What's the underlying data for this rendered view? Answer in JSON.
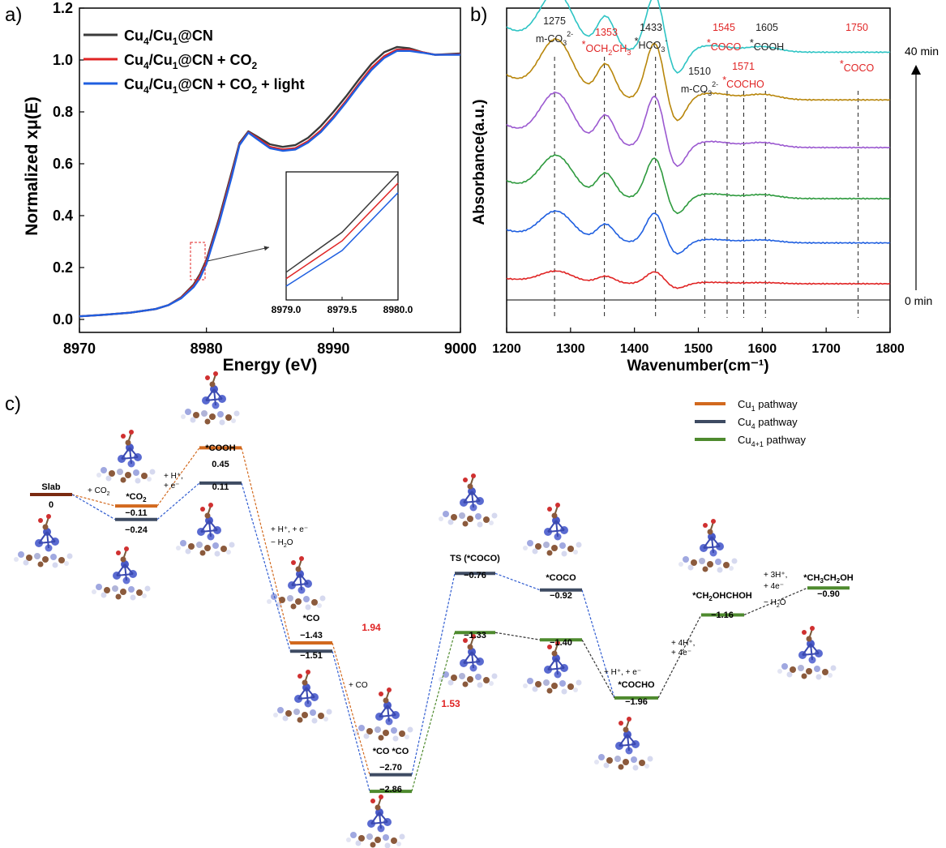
{
  "panel_labels": {
    "a": "a)",
    "b": "b)",
    "c": "c)"
  },
  "colors": {
    "dark": "#3a3a3a",
    "red": "#e02424",
    "blue": "#1f5fe0",
    "orange": "#d2691e",
    "navy": "#3e4b62",
    "green": "#4e8a2e",
    "slab": "#7a2a10"
  },
  "chart_data": [
    {
      "type": "line",
      "panel": "a",
      "xlabel": "Energy (eV)",
      "ylabel": "Normalized xμ(E)",
      "xlim": [
        8970,
        9000
      ],
      "ylim": [
        -0.05,
        1.2
      ],
      "xticks": [
        "8970",
        "8980",
        "8990",
        "9000"
      ],
      "yticks": [
        "0.0",
        "0.2",
        "0.4",
        "0.6",
        "0.8",
        "1.0",
        "1.2"
      ],
      "legend_position": "top-left",
      "series": [
        {
          "name": "Cu4/Cu1@CN",
          "legend": {
            "base": "Cu",
            "sub1": "4",
            "mid": "/Cu",
            "sub2": "1",
            "tail": "@CN",
            "sub3": "",
            "tail2": ""
          },
          "color": "#3a3a3a",
          "x": [
            8970,
            8972,
            8974,
            8976,
            8977,
            8978,
            8979,
            8979.5,
            8980,
            8981,
            8982,
            8982.6,
            8983.3,
            8984,
            8985,
            8986,
            8987,
            8988,
            8989,
            8990,
            8991,
            8992,
            8993,
            8994,
            8995,
            8996,
            8997,
            8998,
            9000
          ],
          "y": [
            0.012,
            0.018,
            0.026,
            0.04,
            0.055,
            0.085,
            0.135,
            0.175,
            0.23,
            0.39,
            0.57,
            0.68,
            0.725,
            0.705,
            0.675,
            0.665,
            0.672,
            0.7,
            0.745,
            0.8,
            0.86,
            0.925,
            0.985,
            1.03,
            1.05,
            1.045,
            1.03,
            1.02,
            1.025
          ]
        },
        {
          "name": "Cu4/Cu1@CN + CO2",
          "legend": {
            "base": "Cu",
            "sub1": "4",
            "mid": "/Cu",
            "sub2": "1",
            "tail": "@CN + CO",
            "sub3": "2",
            "tail2": ""
          },
          "color": "#e02424",
          "x": [
            8970,
            8972,
            8974,
            8976,
            8977,
            8978,
            8979,
            8979.5,
            8980,
            8981,
            8982,
            8982.6,
            8983.3,
            8984,
            8985,
            8986,
            8987,
            8988,
            8989,
            8990,
            8991,
            8992,
            8993,
            8994,
            8995,
            8996,
            8997,
            8998,
            9000
          ],
          "y": [
            0.012,
            0.018,
            0.026,
            0.04,
            0.055,
            0.083,
            0.13,
            0.168,
            0.222,
            0.38,
            0.56,
            0.675,
            0.722,
            0.7,
            0.665,
            0.655,
            0.66,
            0.687,
            0.728,
            0.782,
            0.843,
            0.908,
            0.97,
            1.015,
            1.04,
            1.04,
            1.03,
            1.02,
            1.022
          ]
        },
        {
          "name": "Cu4/Cu1@CN + CO2 + light",
          "legend": {
            "base": "Cu",
            "sub1": "4",
            "mid": "/Cu",
            "sub2": "1",
            "tail": "@CN + CO",
            "sub3": "2",
            "tail2": " + light"
          },
          "color": "#1f5fe0",
          "x": [
            8970,
            8972,
            8974,
            8976,
            8977,
            8978,
            8979,
            8979.5,
            8980,
            8981,
            8982,
            8982.6,
            8983.3,
            8984,
            8985,
            8986,
            8987,
            8988,
            8989,
            8990,
            8991,
            8992,
            8993,
            8994,
            8995,
            8996,
            8997,
            8998,
            9000
          ],
          "y": [
            0.012,
            0.018,
            0.026,
            0.04,
            0.055,
            0.081,
            0.125,
            0.16,
            0.215,
            0.372,
            0.552,
            0.672,
            0.72,
            0.695,
            0.66,
            0.65,
            0.655,
            0.682,
            0.722,
            0.776,
            0.837,
            0.902,
            0.962,
            1.008,
            1.035,
            1.035,
            1.028,
            1.02,
            1.02
          ]
        }
      ],
      "inset": {
        "xlim": [
          8979.0,
          8980.0
        ],
        "xticks": [
          "8979.0",
          "8979.5",
          "8980.0"
        ],
        "series_y": [
          [
            0.138,
            0.176,
            0.232
          ],
          [
            0.133,
            0.169,
            0.224
          ],
          [
            0.127,
            0.161,
            0.216
          ]
        ],
        "x": [
          8979.0,
          8979.5,
          8980.0
        ]
      }
    },
    {
      "type": "line",
      "panel": "b",
      "xlabel": "Wavenumber(cm⁻¹)",
      "ylabel": "Absorbance(a.u.)",
      "xlim": [
        1200,
        1800
      ],
      "xticks": [
        "1200",
        "1300",
        "1400",
        "1500",
        "1600",
        "1700",
        "1800"
      ],
      "time_labels": {
        "top": "40 min",
        "bottom": "0 min"
      },
      "peak_positions": [
        1275,
        1353,
        1433,
        1510,
        1545,
        1571,
        1605,
        1750
      ],
      "peak_labels": [
        {
          "wn": 1275,
          "num": "1275",
          "species": "m-CO",
          "sub": "3",
          "sup": "2-",
          "star": "",
          "color": "#222222"
        },
        {
          "wn": 1353,
          "num": "1353",
          "species": "OCH",
          "sub": "2",
          "tail": "CH",
          "sub2": "3",
          "star": "*",
          "color": "#e02424"
        },
        {
          "wn": 1433,
          "num": "1433",
          "species": "HCO",
          "sub": "3",
          "sup": "-",
          "star": "*",
          "color": "#222222"
        },
        {
          "wn": 1510,
          "num": "1510",
          "species": "m-CO",
          "sub": "3",
          "sup": "2-",
          "star": "",
          "color": "#222222"
        },
        {
          "wn": 1545,
          "num": "1545",
          "species": "COCO",
          "star": "*",
          "color": "#e02424"
        },
        {
          "wn": 1571,
          "num": "1571",
          "species": "COCHO",
          "star": "*",
          "color": "#e02424"
        },
        {
          "wn": 1605,
          "num": "1605",
          "species": "COOH",
          "star": "*",
          "color": "#222222"
        },
        {
          "wn": 1750,
          "num": "1750",
          "species": "COCO",
          "star": "*",
          "color": "#e02424"
        }
      ],
      "baseline_y_value": 0,
      "series": [
        {
          "time_index": 0,
          "color": "#e02424",
          "offset": 0.0,
          "scale": 0.22
        },
        {
          "time_index": 1,
          "color": "#1f5fe0",
          "offset": 0.12,
          "scale": 0.55
        },
        {
          "time_index": 2,
          "color": "#2e9a3e",
          "offset": 0.25,
          "scale": 0.75
        },
        {
          "time_index": 3,
          "color": "#9b59d0",
          "offset": 0.4,
          "scale": 0.95
        },
        {
          "time_index": 4,
          "color": "#b8860b",
          "offset": 0.54,
          "scale": 1.05
        },
        {
          "time_index": 5,
          "color": "#2ec4c4",
          "offset": 0.68,
          "scale": 1.05
        }
      ]
    },
    {
      "type": "diagram",
      "panel": "c",
      "legend": [
        {
          "label": "Cu",
          "sub": "1",
          "tail": "   pathway",
          "color": "#d2691e"
        },
        {
          "label": "Cu",
          "sub": "4",
          "tail": "   pathway",
          "color": "#3e4b62"
        },
        {
          "label": "Cu",
          "sub": "4+1",
          "tail": " pathway",
          "color": "#4e8a2e"
        }
      ],
      "barrier_labels": [
        "1.94",
        "1.53"
      ],
      "states": [
        {
          "label": "Slab",
          "value_label": "0"
        },
        {
          "label": "*CO",
          "label_sub": "2",
          "value_labels": [
            "−0.11",
            "−0.24"
          ]
        },
        {
          "label": "*COOH",
          "value_labels": [
            "0.45",
            "0.11"
          ]
        },
        {
          "label": "*CO",
          "value_labels": [
            "−1.43",
            "−1.51"
          ]
        },
        {
          "label": "*CO *CO",
          "value_labels": [
            "−2.70",
            "−2.86"
          ]
        },
        {
          "label": "TS (*COCO)",
          "value_labels": [
            "−0.76",
            "−1.33"
          ]
        },
        {
          "label": "*COCO",
          "value_labels": [
            "−0.92",
            "−1.40"
          ]
        },
        {
          "label": "*COCHO",
          "value_labels": [
            "−1.96"
          ]
        },
        {
          "label": "*CH",
          "label_sub": "2",
          "label_tail": "OHCHOH",
          "value_labels": [
            "−1.16"
          ]
        },
        {
          "label": "*CH",
          "label_sub": "3",
          "label_mid": "CH",
          "label_sub2": "2",
          "label_tail": "OH",
          "value_labels": [
            "−0.90"
          ]
        }
      ],
      "step_labels": [
        {
          "text": "+ CO",
          "sub": "2"
        },
        {
          "text": "+ H⁺,",
          "line2": "+ e⁻"
        },
        {
          "text": "+ H⁺, + e⁻",
          "line2": "− H",
          "sub": "2",
          "tail": "O"
        },
        {
          "text": "+ CO"
        },
        {
          "text": "+ H⁺, + e⁻"
        },
        {
          "text": "+ 4H⁺,",
          "line2": "+ 4e⁻"
        },
        {
          "text": "+ 3H⁺,",
          "line2": "+ 4e⁻",
          "line3": "− H",
          "sub": "2",
          "tail": "O"
        }
      ]
    }
  ]
}
